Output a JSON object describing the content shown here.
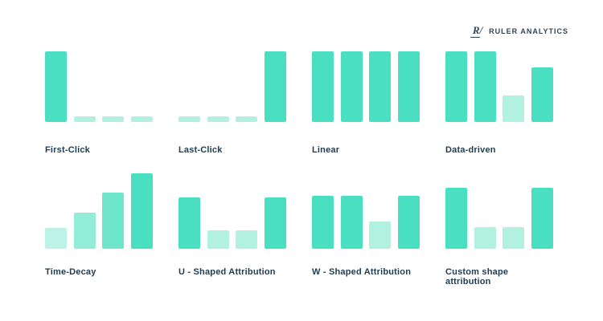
{
  "header": {
    "logo_icon": "R/",
    "logo_text": "RULER ANALYTICS"
  },
  "colors": {
    "dark": "#4bdfc1",
    "light": "#b2f0e0",
    "decay1": "#bcf3e6",
    "decay2": "#92ecd8",
    "decay3": "#6fe5cc",
    "label": "#1d3c53",
    "logo": "#2f4558"
  },
  "chart_data": [
    {
      "type": "bar",
      "title": "First-Click",
      "values": [
        100,
        8,
        8,
        8
      ],
      "shades": [
        "dark",
        "light",
        "light",
        "light"
      ]
    },
    {
      "type": "bar",
      "title": "Last-Click",
      "values": [
        8,
        8,
        8,
        100
      ],
      "shades": [
        "light",
        "light",
        "light",
        "dark"
      ]
    },
    {
      "type": "bar",
      "title": "Linear",
      "values": [
        100,
        100,
        100,
        100
      ],
      "shades": [
        "dark",
        "dark",
        "dark",
        "dark"
      ]
    },
    {
      "type": "bar",
      "title": "Data-driven",
      "values": [
        100,
        100,
        38,
        77
      ],
      "shades": [
        "dark",
        "dark",
        "light",
        "dark"
      ]
    },
    {
      "type": "bar",
      "title": "Time-Decay",
      "values": [
        28,
        48,
        75,
        100
      ],
      "shades": [
        "decay1",
        "decay2",
        "decay3",
        "dark"
      ]
    },
    {
      "type": "bar",
      "title": "U - Shaped Attribution",
      "values": [
        68,
        24,
        24,
        68
      ],
      "shades": [
        "dark",
        "light",
        "light",
        "dark"
      ]
    },
    {
      "type": "bar",
      "title": "W - Shaped Attribution",
      "values": [
        70,
        70,
        36,
        70
      ],
      "shades": [
        "dark",
        "dark",
        "light",
        "dark"
      ]
    },
    {
      "type": "bar",
      "title": "Custom shape attribution",
      "values": [
        81,
        29,
        29,
        81
      ],
      "shades": [
        "dark",
        "light",
        "light",
        "dark"
      ]
    }
  ]
}
